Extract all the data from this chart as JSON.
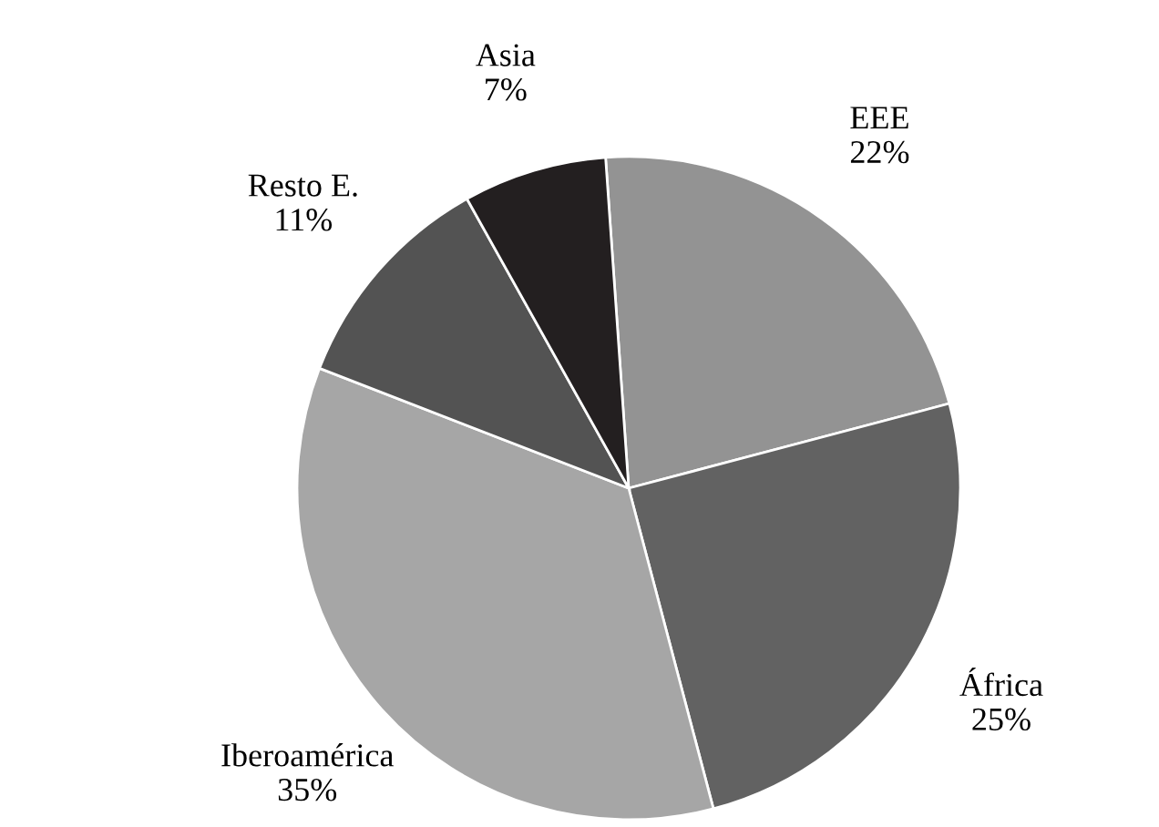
{
  "chart_data": {
    "type": "pie",
    "categories": [
      "EEE",
      "África",
      "Iberoamérica",
      "Resto E.",
      "Asia"
    ],
    "values": [
      22,
      25,
      35,
      11,
      7
    ],
    "colors": [
      "#939393",
      "#626262",
      "#a6a6a6",
      "#535353",
      "#231f20"
    ],
    "value_labels": [
      "22%",
      "25%",
      "35%",
      "11%",
      "7%"
    ],
    "legend": false
  }
}
